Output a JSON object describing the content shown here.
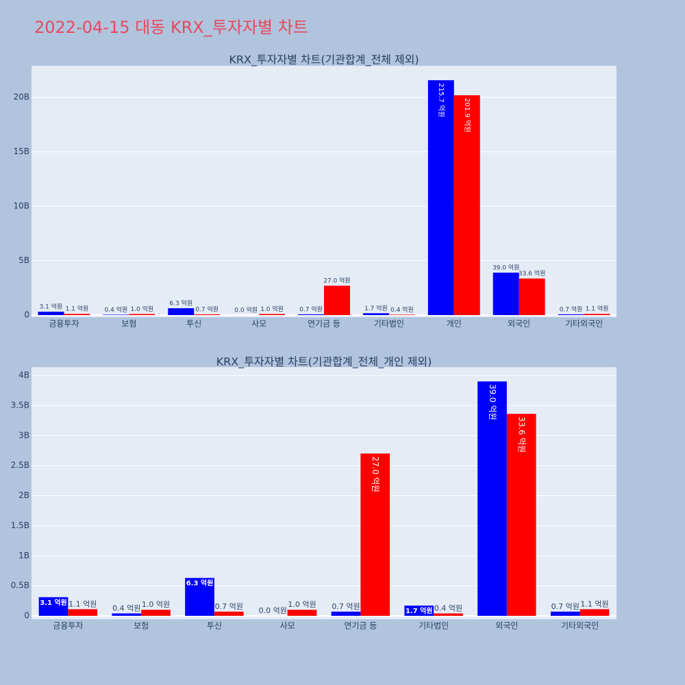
{
  "title": "2022-04-15 대동 KRX_투자자별 차트",
  "chart_data": [
    {
      "type": "bar",
      "title": "KRX_투자자별 차트(기관합계_전체 제외)",
      "categories": [
        "금융투자",
        "보험",
        "투신",
        "사모",
        "연기금 등",
        "기타법인",
        "개인",
        "외국인",
        "기타외국인"
      ],
      "series": [
        {
          "color": "#0000ff",
          "values": [
            310000000,
            40000000,
            630000000,
            0,
            70000000,
            170000000,
            21570000000,
            3900000000,
            70000000
          ],
          "value_labels": [
            "3.1 억원",
            "0.4 억원",
            "6.3 억원",
            "0.0 억원",
            "0.7 억원",
            "1.7 억원",
            "215.7 억원",
            "39.0 억원",
            "0.7 억원"
          ]
        },
        {
          "color": "#ff0000",
          "values": [
            110000000,
            100000000,
            70000000,
            100000000,
            2700000000,
            40000000,
            20190000000,
            3360000000,
            110000000
          ],
          "value_labels": [
            "1.1 억원",
            "1.0 억원",
            "0.7 억원",
            "1.0 억원",
            "27.0 억원",
            "0.4 억원",
            "201.9 억원",
            "33.6 억원",
            "1.1 억원"
          ]
        }
      ],
      "ylim": [
        -190000000,
        22900000000
      ],
      "yticks": [
        0,
        {
          "value": 5000000000,
          "label": "5B"
        },
        {
          "value": 10000000000,
          "label": "10B"
        },
        {
          "value": 15000000000,
          "label": "15B"
        },
        {
          "value": 20000000000,
          "label": "20B"
        }
      ],
      "grid": true
    },
    {
      "type": "bar",
      "title": "KRX_투자자별 차트(기관합계_전체_개인 제외)",
      "categories": [
        "금융투자",
        "보험",
        "투신",
        "사모",
        "연기금 등",
        "기타법인",
        "외국인",
        "기타외국인"
      ],
      "series": [
        {
          "color": "#0000ff",
          "values": [
            310000000,
            40000000,
            630000000,
            0,
            70000000,
            170000000,
            3900000000,
            70000000
          ],
          "value_labels": [
            "3.1 억원",
            "0.4 억원",
            "6.3 억원",
            "0.0 억원",
            "0.7 억원",
            "1.7 억원",
            "39.0 억원",
            "0.7 억원"
          ]
        },
        {
          "color": "#ff0000",
          "values": [
            110000000,
            100000000,
            70000000,
            100000000,
            2700000000,
            40000000,
            3360000000,
            110000000
          ],
          "value_labels": [
            "1.1 억원",
            "1.0 억원",
            "0.7 억원",
            "1.0 억원",
            "27.0 억원",
            "0.4 억원",
            "33.6 억원",
            "1.1 억원"
          ]
        }
      ],
      "ylim": [
        -57000000,
        4137000000
      ],
      "yticks": [
        0,
        {
          "value": 500000000,
          "label": "0.5B"
        },
        {
          "value": 1000000000,
          "label": "1B"
        },
        {
          "value": 1500000000,
          "label": "1.5B"
        },
        {
          "value": 2000000000,
          "label": "2B"
        },
        {
          "value": 2500000000,
          "label": "2.5B"
        },
        {
          "value": 3000000000,
          "label": "3B"
        },
        {
          "value": 3500000000,
          "label": "3.5B"
        },
        {
          "value": 4000000000,
          "label": "4B"
        }
      ],
      "grid": true
    }
  ]
}
